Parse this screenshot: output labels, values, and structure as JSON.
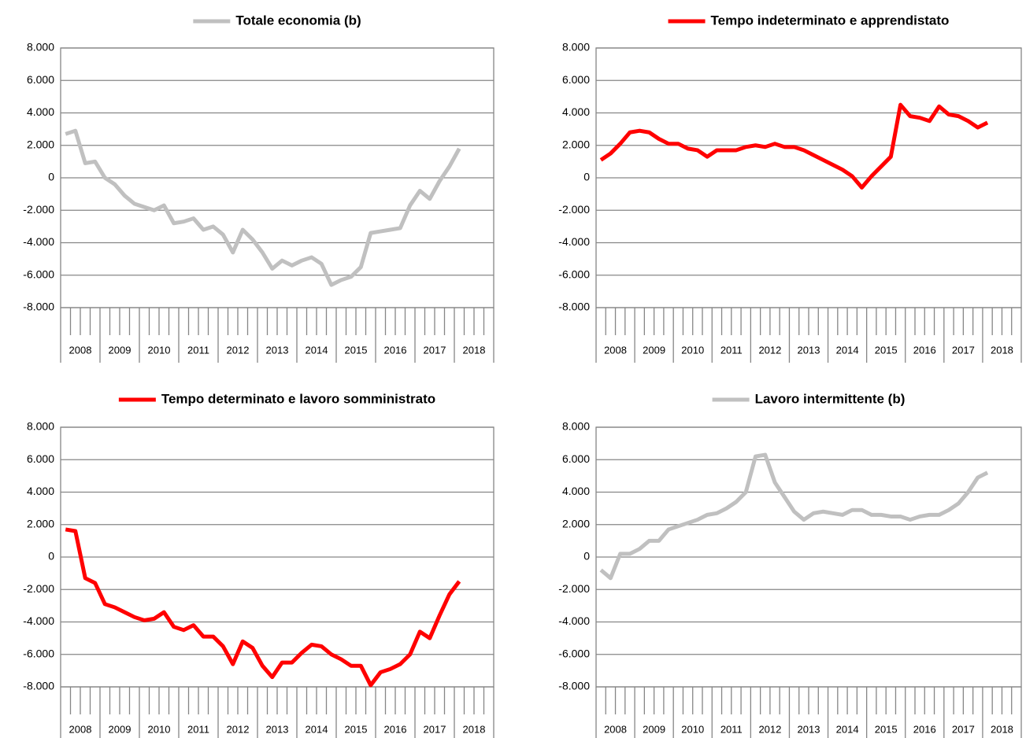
{
  "chart_data": [
    {
      "type": "line",
      "series": [
        {
          "name": "Totale economia (b)",
          "color": "#c0c0c0",
          "values": [
            2700,
            2900,
            900,
            1000,
            0,
            -400,
            -1100,
            -1600,
            -1800,
            -2000,
            -1700,
            -2800,
            -2700,
            -2500,
            -3200,
            -3000,
            -3500,
            -4600,
            -3200,
            -3800,
            -4600,
            -5600,
            -5100,
            -5400,
            -5100,
            -4900,
            -5300,
            -6600,
            -6300,
            -6100,
            -5500,
            -3400,
            -3300,
            -3200,
            -3100,
            -1700,
            -800,
            -1300,
            -200,
            700,
            1800
          ]
        }
      ],
      "categories": [
        null,
        null,
        null,
        null,
        null,
        null,
        null,
        null,
        null,
        null,
        null,
        null,
        null,
        null,
        null,
        null,
        null,
        null,
        null,
        null,
        null,
        null,
        null,
        null,
        null,
        null,
        null,
        null,
        null,
        null,
        null,
        null,
        null,
        null,
        null,
        null,
        null,
        null,
        null,
        null,
        null
      ],
      "year_labels": [
        "2008",
        "2009",
        "2010",
        "2011",
        "2012",
        "2013",
        "2014",
        "2015",
        "2016",
        "2017",
        "2018"
      ],
      "ylim": [
        -8000,
        8000
      ],
      "yticks": [
        {
          "value": -8000,
          "label": "-8.000"
        },
        {
          "value": -6000,
          "label": "-6.000"
        },
        {
          "value": -4000,
          "label": "-4.000"
        },
        {
          "value": -2000,
          "label": "-2.000"
        },
        0,
        {
          "value": 2000,
          "label": "2.000"
        },
        {
          "value": 4000,
          "label": "4.000"
        },
        {
          "value": 6000,
          "label": "6.000"
        },
        {
          "value": 8000,
          "label": "8.000"
        }
      ],
      "grid": true
    },
    {
      "type": "line",
      "series": [
        {
          "name": "Tempo indeterminato e apprendistato",
          "color": "#ff0000",
          "values": [
            1100,
            1500,
            2100,
            2800,
            2900,
            2800,
            2400,
            2100,
            2100,
            1800,
            1700,
            1300,
            1700,
            1700,
            1700,
            1900,
            2000,
            1900,
            2100,
            1900,
            1900,
            1700,
            1400,
            1100,
            800,
            500,
            100,
            -600,
            100,
            700,
            1300,
            4500,
            3800,
            3700,
            3500,
            4400,
            3900,
            3800,
            3500,
            3100,
            3400
          ]
        }
      ],
      "categories": [
        null,
        null,
        null,
        null,
        null,
        null,
        null,
        null,
        null,
        null,
        null,
        null,
        null,
        null,
        null,
        null,
        null,
        null,
        null,
        null,
        null,
        null,
        null,
        null,
        null,
        null,
        null,
        null,
        null,
        null,
        null,
        null,
        null,
        null,
        null,
        null,
        null,
        null,
        null,
        null,
        null
      ],
      "year_labels": [
        "2008",
        "2009",
        "2010",
        "2011",
        "2012",
        "2013",
        "2014",
        "2015",
        "2016",
        "2017",
        "2018"
      ],
      "ylim": [
        -8000,
        8000
      ],
      "yticks": [
        {
          "value": -8000,
          "label": "-8.000"
        },
        {
          "value": -6000,
          "label": "-6.000"
        },
        {
          "value": -4000,
          "label": "-4.000"
        },
        {
          "value": -2000,
          "label": "-2.000"
        },
        0,
        {
          "value": 2000,
          "label": "2.000"
        },
        {
          "value": 4000,
          "label": "4.000"
        },
        {
          "value": 6000,
          "label": "6.000"
        },
        {
          "value": 8000,
          "label": "8.000"
        }
      ],
      "grid": true
    },
    {
      "type": "line",
      "series": [
        {
          "name": "Tempo determinato e lavoro somministrato",
          "color": "#ff0000",
          "values": [
            1700,
            1600,
            -1300,
            -1600,
            -2900,
            -3100,
            -3400,
            -3700,
            -3900,
            -3800,
            -3400,
            -4300,
            -4500,
            -4200,
            -4900,
            -4900,
            -5500,
            -6600,
            -5200,
            -5600,
            -6700,
            -7400,
            -6500,
            -6500,
            -5900,
            -5400,
            -5500,
            -6000,
            -6300,
            -6700,
            -6700,
            -7900,
            -7100,
            -6900,
            -6600,
            -6000,
            -4600,
            -5000,
            -3600,
            -2300,
            -1500
          ]
        }
      ],
      "categories": [
        null,
        null,
        null,
        null,
        null,
        null,
        null,
        null,
        null,
        null,
        null,
        null,
        null,
        null,
        null,
        null,
        null,
        null,
        null,
        null,
        null,
        null,
        null,
        null,
        null,
        null,
        null,
        null,
        null,
        null,
        null,
        null,
        null,
        null,
        null,
        null,
        null,
        null,
        null,
        null,
        null
      ],
      "year_labels": [
        "2008",
        "2009",
        "2010",
        "2011",
        "2012",
        "2013",
        "2014",
        "2015",
        "2016",
        "2017",
        "2018"
      ],
      "ylim": [
        -8000,
        8000
      ],
      "yticks": [
        {
          "value": -8000,
          "label": "-8.000"
        },
        {
          "value": -6000,
          "label": "-6.000"
        },
        {
          "value": -4000,
          "label": "-4.000"
        },
        {
          "value": -2000,
          "label": "-2.000"
        },
        0,
        {
          "value": 2000,
          "label": "2.000"
        },
        {
          "value": 4000,
          "label": "4.000"
        },
        {
          "value": 6000,
          "label": "6.000"
        },
        {
          "value": 8000,
          "label": "8.000"
        }
      ],
      "grid": true
    },
    {
      "type": "line",
      "series": [
        {
          "name": "Lavoro intermittente (b)",
          "color": "#c0c0c0",
          "values": [
            -800,
            -1300,
            200,
            200,
            500,
            1000,
            1000,
            1700,
            1900,
            2100,
            2300,
            2600,
            2700,
            3000,
            3400,
            4000,
            6200,
            6300,
            4600,
            3700,
            2800,
            2300,
            2700,
            2800,
            2700,
            2600,
            2900,
            2900,
            2600,
            2600,
            2500,
            2500,
            2300,
            2500,
            2600,
            2600,
            2900,
            3300,
            4000,
            4900,
            5200
          ]
        }
      ],
      "categories": [
        null,
        null,
        null,
        null,
        null,
        null,
        null,
        null,
        null,
        null,
        null,
        null,
        null,
        null,
        null,
        null,
        null,
        null,
        null,
        null,
        null,
        null,
        null,
        null,
        null,
        null,
        null,
        null,
        null,
        null,
        null,
        null,
        null,
        null,
        null,
        null,
        null,
        null,
        null,
        null,
        null
      ],
      "year_labels": [
        "2008",
        "2009",
        "2010",
        "2011",
        "2012",
        "2013",
        "2014",
        "2015",
        "2016",
        "2017",
        "2018"
      ],
      "ylim": [
        -8000,
        8000
      ],
      "yticks": [
        {
          "value": -8000,
          "label": "-8.000"
        },
        {
          "value": -6000,
          "label": "-6.000"
        },
        {
          "value": -4000,
          "label": "-4.000"
        },
        {
          "value": -2000,
          "label": "-2.000"
        },
        0,
        {
          "value": 2000,
          "label": "2.000"
        },
        {
          "value": 4000,
          "label": "4.000"
        },
        {
          "value": 6000,
          "label": "6.000"
        },
        {
          "value": 8000,
          "label": "8.000"
        }
      ],
      "grid": true
    }
  ]
}
